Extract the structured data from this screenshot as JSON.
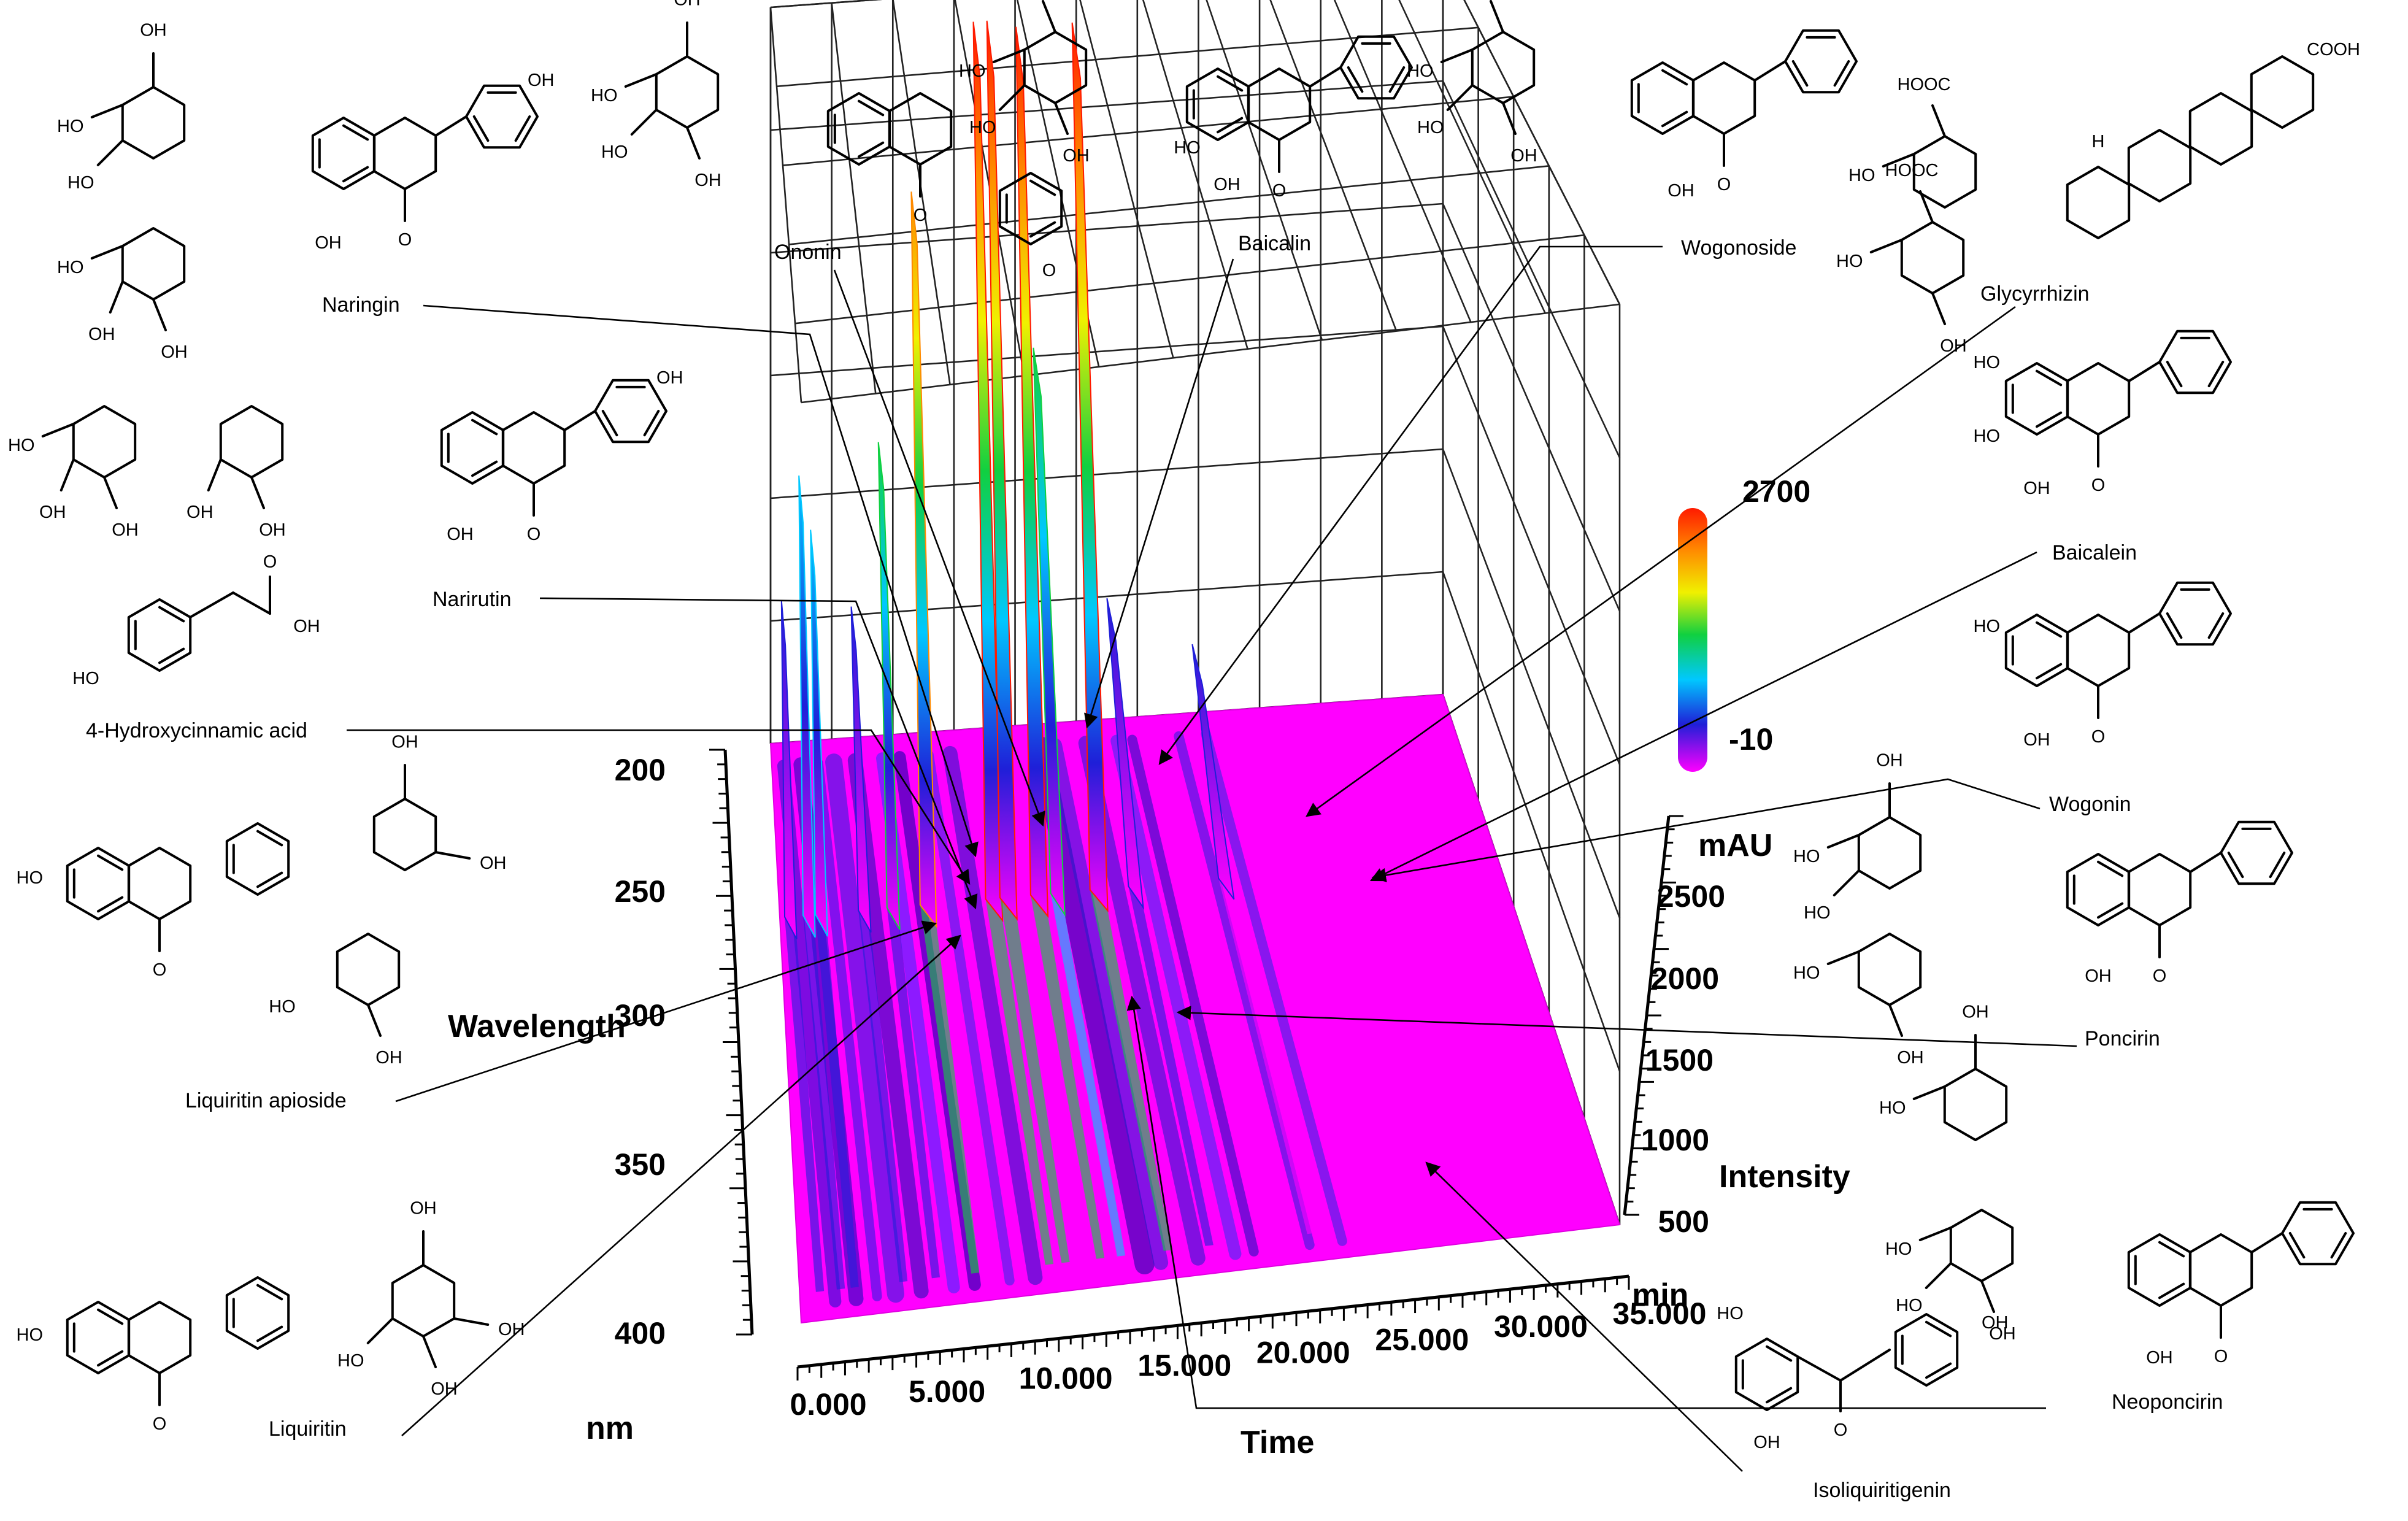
{
  "chart_data": {
    "type": "surface3d",
    "x_axis": {
      "title": "Time",
      "unit": "min",
      "ticks": [
        "0.000",
        "5.000",
        "10.000",
        "15.000",
        "20.000",
        "25.000",
        "30.000",
        "35.000"
      ],
      "range": [
        0,
        35
      ]
    },
    "y_axis": {
      "title": "Wavelength",
      "unit": "nm",
      "ticks": [
        "200",
        "250",
        "300",
        "350",
        "400"
      ],
      "range": [
        200,
        400
      ]
    },
    "z_axis": {
      "title": "Intensity",
      "unit": "mAU",
      "ticks": [
        "500",
        "1000",
        "1500",
        "2000",
        "2500"
      ],
      "range": [
        0,
        2700
      ]
    },
    "color_scale": {
      "max_label": "2700",
      "min_label": "-10",
      "colors": [
        "#ff00ff",
        "#1f1fd8",
        "#00c8ff",
        "#10d040",
        "#f0f000",
        "#ff8a00",
        "#ff1a00"
      ]
    },
    "peaks": [
      {
        "time": 0.5,
        "intensity": 600
      },
      {
        "time": 1.4,
        "intensity": 1050
      },
      {
        "time": 2.0,
        "intensity": 850
      },
      {
        "time": 4.1,
        "intensity": 560
      },
      {
        "time": 5.5,
        "intensity": 1150
      },
      {
        "time": 7.2,
        "intensity": 2050
      },
      {
        "time": 10.4,
        "intensity": 2650
      },
      {
        "time": 11.1,
        "intensity": 2650
      },
      {
        "time": 12.6,
        "intensity": 2620
      },
      {
        "time": 13.5,
        "intensity": 1450
      },
      {
        "time": 15.5,
        "intensity": 2620
      },
      {
        "time": 17.3,
        "intensity": 520
      },
      {
        "time": 21.7,
        "intensity": 330
      }
    ],
    "annotations": [
      {
        "label": "Naringin"
      },
      {
        "label": "Narirutin"
      },
      {
        "label": "4-Hydroxycinnamic acid"
      },
      {
        "label": "Ononin"
      },
      {
        "label": "Baicalin"
      },
      {
        "label": "Wogonoside"
      },
      {
        "label": "Glycyrrhizin"
      },
      {
        "label": "Baicalein"
      },
      {
        "label": "Wogonin"
      },
      {
        "label": "Poncirin"
      },
      {
        "label": "Neoponcirin"
      },
      {
        "label": "Isoliquiritigenin"
      },
      {
        "label": "Liquiritin apioside"
      },
      {
        "label": "Liquiritin"
      }
    ]
  },
  "structure_text": {
    "oh": "OH",
    "ho": "HO",
    "o": "O",
    "hooc": "HOOC",
    "cooh": "COOH",
    "h": "H"
  }
}
